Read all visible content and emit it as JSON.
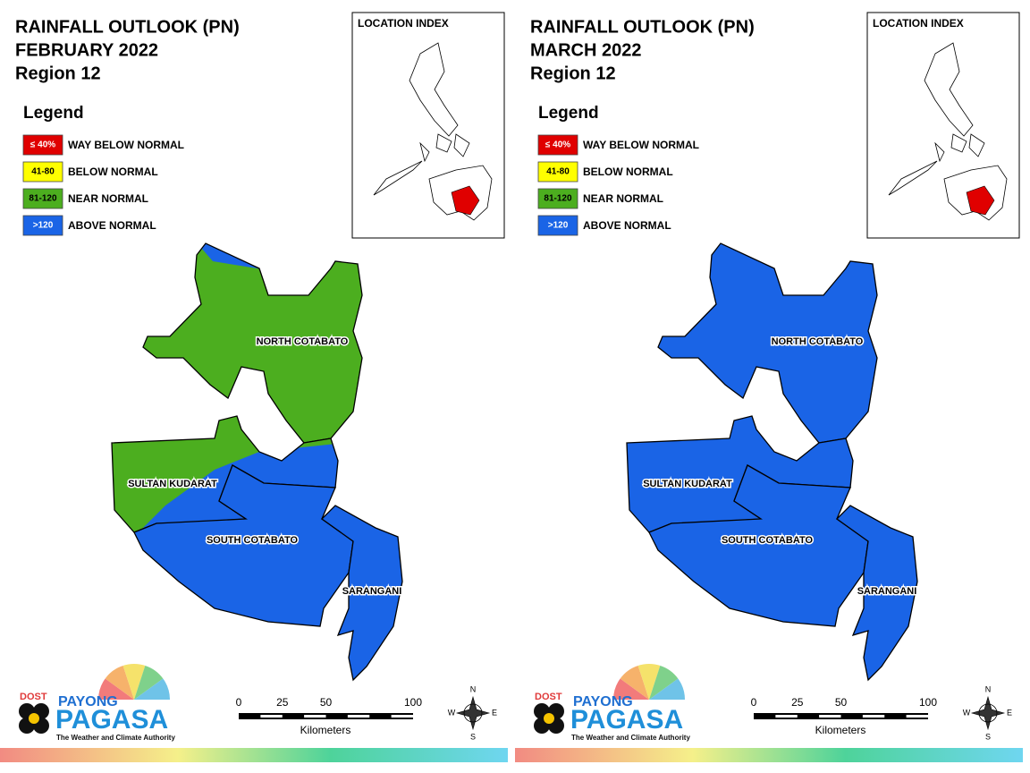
{
  "legend": {
    "title": "Legend",
    "items": [
      {
        "key": "≤ 40%",
        "label": "WAY BELOW NORMAL",
        "color": "#e00000",
        "text_color": "#ffffff"
      },
      {
        "key": "41-80",
        "label": "BELOW NORMAL",
        "color": "#ffff00",
        "text_color": "#000000"
      },
      {
        "key": "81-120",
        "label": "NEAR NORMAL",
        "color": "#4cae1f",
        "text_color": "#000000"
      },
      {
        "key": ">120",
        "label": "ABOVE NORMAL",
        "color": "#1a64e6",
        "text_color": "#ffffff"
      }
    ]
  },
  "location_index": {
    "title": "LOCATION INDEX",
    "highlight_color": "#e00000"
  },
  "panels": [
    {
      "title": [
        "RAINFALL OUTLOOK (PN)",
        "FEBRUARY 2022",
        "Region 12"
      ],
      "provinces": [
        {
          "name": "NORTH COTABATO",
          "colors": [
            "#4cae1f",
            "#1a64e6"
          ]
        },
        {
          "name": "SULTAN KUDARAT",
          "colors": [
            "#4cae1f",
            "#1a64e6"
          ]
        },
        {
          "name": "SOUTH COTABATO",
          "colors": [
            "#1a64e6"
          ]
        },
        {
          "name": "SARANGANI",
          "colors": [
            "#1a64e6"
          ]
        }
      ]
    },
    {
      "title": [
        "RAINFALL OUTLOOK (PN)",
        "MARCH 2022",
        "Region 12"
      ],
      "provinces": [
        {
          "name": "NORTH COTABATO",
          "colors": [
            "#1a64e6"
          ]
        },
        {
          "name": "SULTAN KUDARAT",
          "colors": [
            "#1a64e6"
          ]
        },
        {
          "name": "SOUTH COTABATO",
          "colors": [
            "#1a64e6"
          ]
        },
        {
          "name": "SARANGANI",
          "colors": [
            "#1a64e6"
          ]
        }
      ]
    }
  ],
  "scale": {
    "ticks": [
      0,
      25,
      50,
      100
    ],
    "unit": "Kilometers"
  },
  "compass": [
    "N",
    "E",
    "S",
    "W"
  ],
  "logo": {
    "agency": "DOST",
    "brand_top": "PAYONG",
    "brand": "PAGASA",
    "tagline": "The Weather and Climate Authority"
  }
}
